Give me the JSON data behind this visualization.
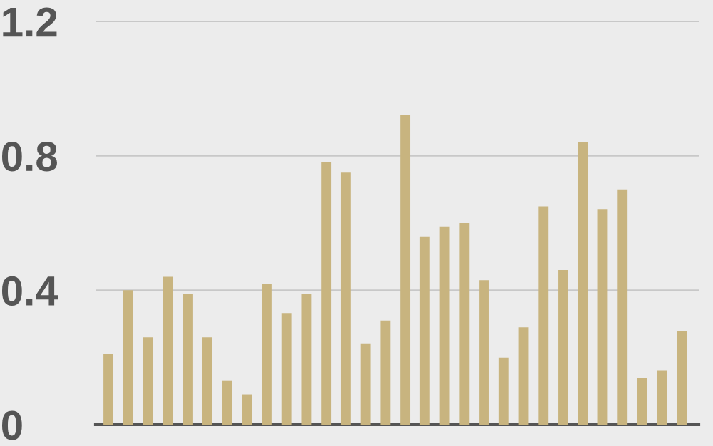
{
  "chart_data": {
    "type": "bar",
    "categories": [
      null,
      null,
      null,
      null,
      null,
      null,
      null,
      null,
      null,
      null,
      null,
      null,
      null,
      null,
      null,
      null,
      null,
      null,
      null,
      null,
      null,
      null,
      null,
      null,
      null,
      null,
      null,
      null,
      null,
      null
    ],
    "values": [
      0.21,
      0.4,
      0.26,
      0.44,
      0.39,
      0.26,
      0.13,
      0.09,
      0.42,
      0.33,
      0.39,
      0.78,
      0.75,
      0.24,
      0.31,
      0.92,
      0.56,
      0.59,
      0.6,
      0.43,
      0.2,
      0.29,
      0.65,
      0.46,
      0.84,
      0.64,
      0.7,
      0.14,
      0.16,
      0.28
    ],
    "color": "#c8b47f",
    "ylim": [
      0,
      1.2
    ],
    "yticks": [
      0,
      0.4,
      0.8,
      1.2
    ],
    "grid": "y",
    "tick_labels": "y"
  }
}
